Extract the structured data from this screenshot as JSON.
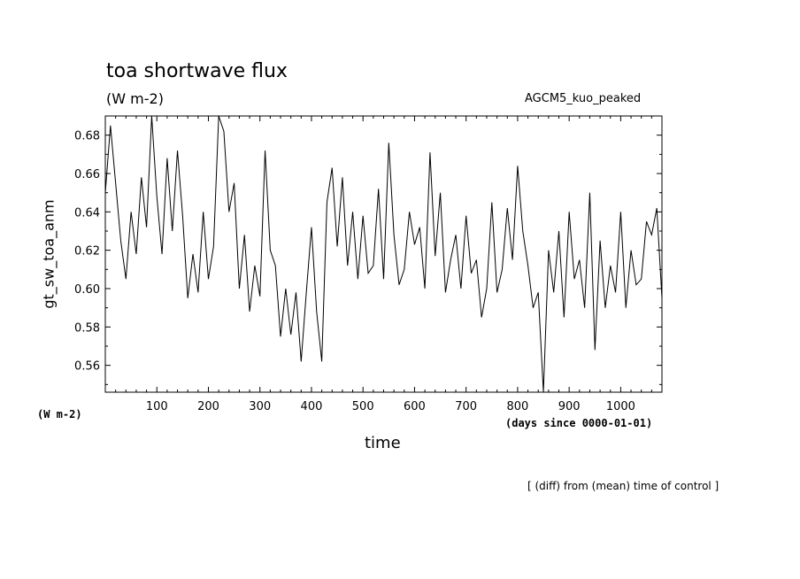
{
  "chart_data": {
    "type": "line",
    "title": "toa shortwave flux",
    "units_label": "(W m-2)",
    "model_label": "AGCM5_kuo_peaked",
    "ylabel": "gt_sw_toa_anm",
    "xlabel": "time",
    "y_units_label": "(W m-2)",
    "x_units_label": "(days since 0000-01-01)",
    "note": "[ (diff) from (mean) time of control ]",
    "xlim": [
      0,
      1080
    ],
    "ylim": [
      0.546,
      0.69
    ],
    "x_ticks": [
      100,
      200,
      300,
      400,
      500,
      600,
      700,
      800,
      900,
      1000
    ],
    "x_tick_labels": [
      "100",
      "200",
      "300",
      "400",
      "500",
      "600",
      "700",
      "800",
      "900",
      "1000"
    ],
    "y_ticks": [
      0.56,
      0.58,
      0.6,
      0.62,
      0.64,
      0.66,
      0.68
    ],
    "y_tick_labels": [
      "0.56",
      "0.58",
      "0.60",
      "0.62",
      "0.64",
      "0.66",
      "0.68"
    ],
    "line_color": "#000000",
    "series": [
      {
        "x": [
          0,
          10,
          20,
          30,
          40,
          50,
          60,
          70,
          80,
          90,
          100,
          110,
          120,
          130,
          140,
          150,
          160,
          170,
          180,
          190,
          200,
          210,
          220,
          230,
          240,
          250,
          260,
          270,
          280,
          290,
          300,
          310,
          320,
          330,
          340,
          350,
          360,
          370,
          380,
          390,
          400,
          410,
          420,
          430,
          440,
          450,
          460,
          470,
          480,
          490,
          500,
          510,
          520,
          530,
          540,
          550,
          560,
          570,
          580,
          590,
          600,
          610,
          620,
          630,
          640,
          650,
          660,
          670,
          680,
          690,
          700,
          710,
          720,
          730,
          740,
          750,
          760,
          770,
          780,
          790,
          800,
          810,
          820,
          830,
          840,
          850,
          860,
          870,
          880,
          890,
          900,
          910,
          920,
          930,
          940,
          950,
          960,
          970,
          980,
          990,
          1000,
          1010,
          1020,
          1030,
          1040,
          1050,
          1060,
          1070,
          1080
        ],
        "values": [
          0.65,
          0.685,
          0.655,
          0.625,
          0.605,
          0.64,
          0.618,
          0.658,
          0.632,
          0.69,
          0.648,
          0.618,
          0.668,
          0.63,
          0.672,
          0.638,
          0.595,
          0.618,
          0.598,
          0.64,
          0.605,
          0.622,
          0.69,
          0.682,
          0.64,
          0.655,
          0.6,
          0.628,
          0.588,
          0.612,
          0.596,
          0.672,
          0.62,
          0.612,
          0.575,
          0.6,
          0.576,
          0.598,
          0.562,
          0.598,
          0.632,
          0.588,
          0.562,
          0.645,
          0.663,
          0.622,
          0.658,
          0.612,
          0.64,
          0.605,
          0.638,
          0.608,
          0.612,
          0.652,
          0.605,
          0.676,
          0.628,
          0.602,
          0.61,
          0.64,
          0.623,
          0.632,
          0.6,
          0.671,
          0.617,
          0.65,
          0.598,
          0.615,
          0.628,
          0.6,
          0.638,
          0.608,
          0.615,
          0.585,
          0.6,
          0.645,
          0.598,
          0.61,
          0.642,
          0.615,
          0.664,
          0.63,
          0.612,
          0.59,
          0.598,
          0.546,
          0.62,
          0.598,
          0.63,
          0.585,
          0.64,
          0.605,
          0.615,
          0.59,
          0.65,
          0.568,
          0.625,
          0.59,
          0.612,
          0.598,
          0.64,
          0.59,
          0.62,
          0.602,
          0.605,
          0.635,
          0.628,
          0.642,
          0.595
        ]
      }
    ]
  }
}
